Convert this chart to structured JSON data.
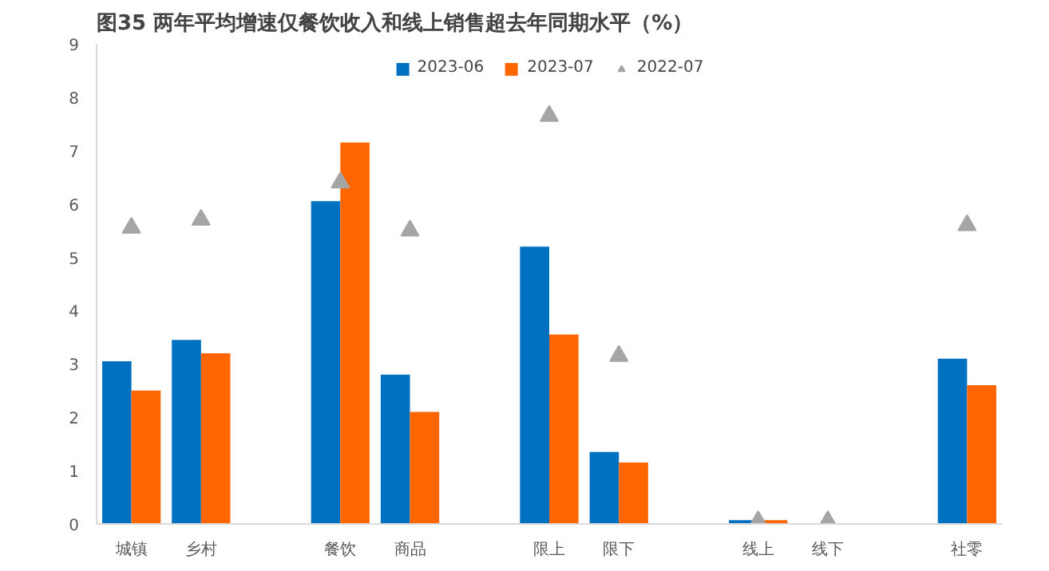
{
  "chart_data": {
    "type": "bar",
    "title": "图35 两年平均增速仅餐饮收入和线上销售超去年同期水平（%）",
    "categories": [
      "城镇",
      "乡村",
      null,
      "餐饮",
      "商品",
      null,
      "限上",
      "限下",
      null,
      "线上",
      "线下",
      null,
      "社零"
    ],
    "series": [
      {
        "name": "2023-06",
        "color": "#0070c0",
        "values": [
          3.05,
          3.45,
          null,
          6.05,
          2.8,
          null,
          5.2,
          1.35,
          null,
          0.07,
          null,
          null,
          3.1
        ]
      },
      {
        "name": "2023-07",
        "color": "#ff6600",
        "values": [
          2.5,
          3.2,
          null,
          7.15,
          2.1,
          null,
          3.55,
          1.15,
          null,
          0.07,
          null,
          null,
          2.6
        ]
      },
      {
        "name": "2022-07",
        "color": "#a5a5a5",
        "type": "scatter",
        "marker": "triangle",
        "values": [
          5.55,
          5.7,
          null,
          6.4,
          5.5,
          null,
          7.65,
          3.15,
          null,
          0.05,
          0.05,
          null,
          5.6
        ]
      }
    ],
    "ylim": [
      0,
      9
    ],
    "yticks": [
      0,
      1,
      2,
      3,
      4,
      5,
      6,
      7,
      8,
      9
    ],
    "grid": false,
    "legend": "top"
  }
}
